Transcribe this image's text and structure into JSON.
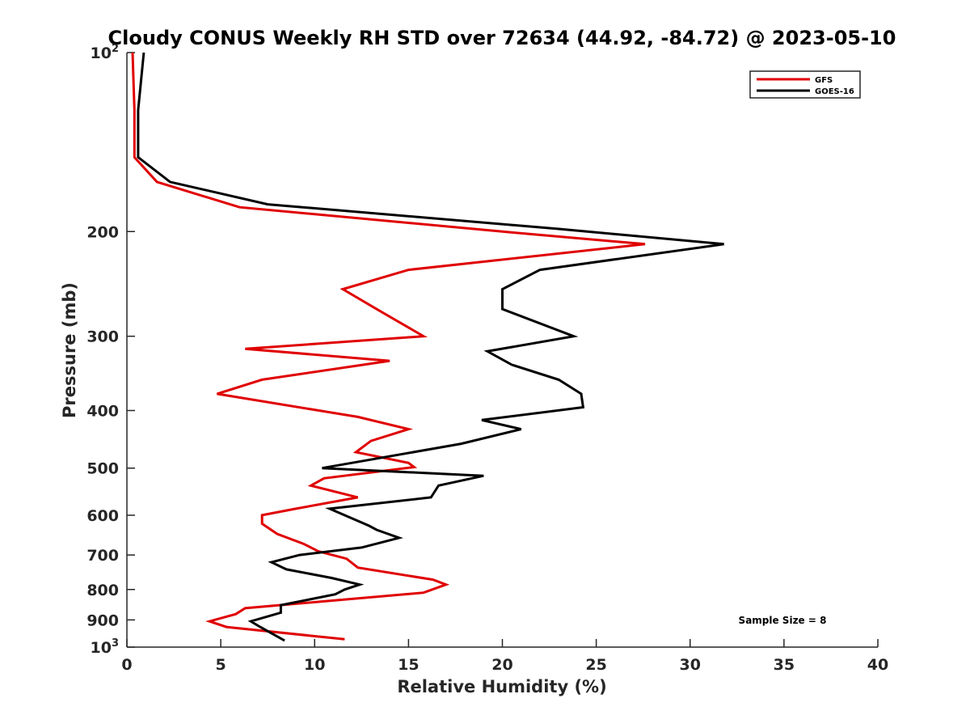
{
  "chart_data": {
    "type": "line",
    "title": "Cloudy CONUS Weekly RH STD over 72634 (44.92, -84.72) @ 2023-05-10",
    "xlabel": "Relative Humidity (%)",
    "ylabel": "Pressure (mb)",
    "xlim": [
      0,
      40
    ],
    "ylim": [
      100,
      1000
    ],
    "yscale": "log",
    "y_reversed": true,
    "xticks": [
      0,
      5,
      10,
      15,
      20,
      25,
      30,
      35,
      40
    ],
    "yticks": [
      {
        "value": 100,
        "base": "10",
        "exp": "2"
      },
      {
        "value": 200,
        "label": "200"
      },
      {
        "value": 300,
        "label": "300"
      },
      {
        "value": 400,
        "label": "400"
      },
      {
        "value": 500,
        "label": "500"
      },
      {
        "value": 600,
        "label": "600"
      },
      {
        "value": 700,
        "label": "700"
      },
      {
        "value": 800,
        "label": "800"
      },
      {
        "value": 900,
        "label": "900"
      },
      {
        "value": 1000,
        "base": "10",
        "exp": "3"
      }
    ],
    "legend_position": "top-right",
    "annotation": "Sample Size = 8",
    "series": [
      {
        "name": "GFS",
        "color": "#e00000",
        "points": [
          [
            0.3,
            100
          ],
          [
            0.4,
            125
          ],
          [
            0.4,
            150
          ],
          [
            1.6,
            165
          ],
          [
            6.0,
            182
          ],
          [
            20.0,
            200
          ],
          [
            27.6,
            210
          ],
          [
            15.0,
            232
          ],
          [
            11.5,
            250
          ],
          [
            13.3,
            270
          ],
          [
            15.8,
            300
          ],
          [
            6.3,
            315
          ],
          [
            14.0,
            330
          ],
          [
            7.2,
            355
          ],
          [
            4.8,
            375
          ],
          [
            12.3,
            410
          ],
          [
            15.0,
            430
          ],
          [
            13.0,
            450
          ],
          [
            12.2,
            470
          ],
          [
            15.0,
            490
          ],
          [
            15.3,
            498
          ],
          [
            10.5,
            520
          ],
          [
            9.8,
            535
          ],
          [
            12.3,
            560
          ],
          [
            9.0,
            585
          ],
          [
            7.2,
            600
          ],
          [
            7.2,
            620
          ],
          [
            8.0,
            645
          ],
          [
            9.4,
            670
          ],
          [
            10.2,
            690
          ],
          [
            11.7,
            710
          ],
          [
            12.3,
            735
          ],
          [
            16.3,
            770
          ],
          [
            17.0,
            785
          ],
          [
            15.8,
            810
          ],
          [
            6.3,
            860
          ],
          [
            5.8,
            880
          ],
          [
            4.4,
            905
          ],
          [
            5.3,
            925
          ],
          [
            11.6,
            970
          ]
        ]
      },
      {
        "name": "GOES-16",
        "color": "#000000",
        "points": [
          [
            0.9,
            100
          ],
          [
            0.6,
            125
          ],
          [
            0.6,
            150
          ],
          [
            2.3,
            165
          ],
          [
            7.5,
            180
          ],
          [
            23.0,
            198
          ],
          [
            31.8,
            210
          ],
          [
            22.0,
            232
          ],
          [
            20.0,
            250
          ],
          [
            20.0,
            270
          ],
          [
            23.8,
            300
          ],
          [
            19.2,
            318
          ],
          [
            20.5,
            335
          ],
          [
            23.0,
            355
          ],
          [
            24.2,
            375
          ],
          [
            24.3,
            395
          ],
          [
            18.9,
            415
          ],
          [
            21.0,
            430
          ],
          [
            17.8,
            455
          ],
          [
            13.6,
            480
          ],
          [
            10.4,
            500
          ],
          [
            19.0,
            515
          ],
          [
            16.6,
            535
          ],
          [
            16.2,
            560
          ],
          [
            10.8,
            585
          ],
          [
            12.9,
            625
          ],
          [
            13.3,
            635
          ],
          [
            14.5,
            655
          ],
          [
            12.5,
            680
          ],
          [
            9.2,
            700
          ],
          [
            7.7,
            720
          ],
          [
            8.5,
            740
          ],
          [
            10.9,
            765
          ],
          [
            12.4,
            785
          ],
          [
            11.6,
            800
          ],
          [
            11.1,
            815
          ],
          [
            8.2,
            850
          ],
          [
            8.2,
            875
          ],
          [
            6.6,
            905
          ],
          [
            7.1,
            925
          ],
          [
            8.4,
            975
          ]
        ]
      }
    ]
  }
}
